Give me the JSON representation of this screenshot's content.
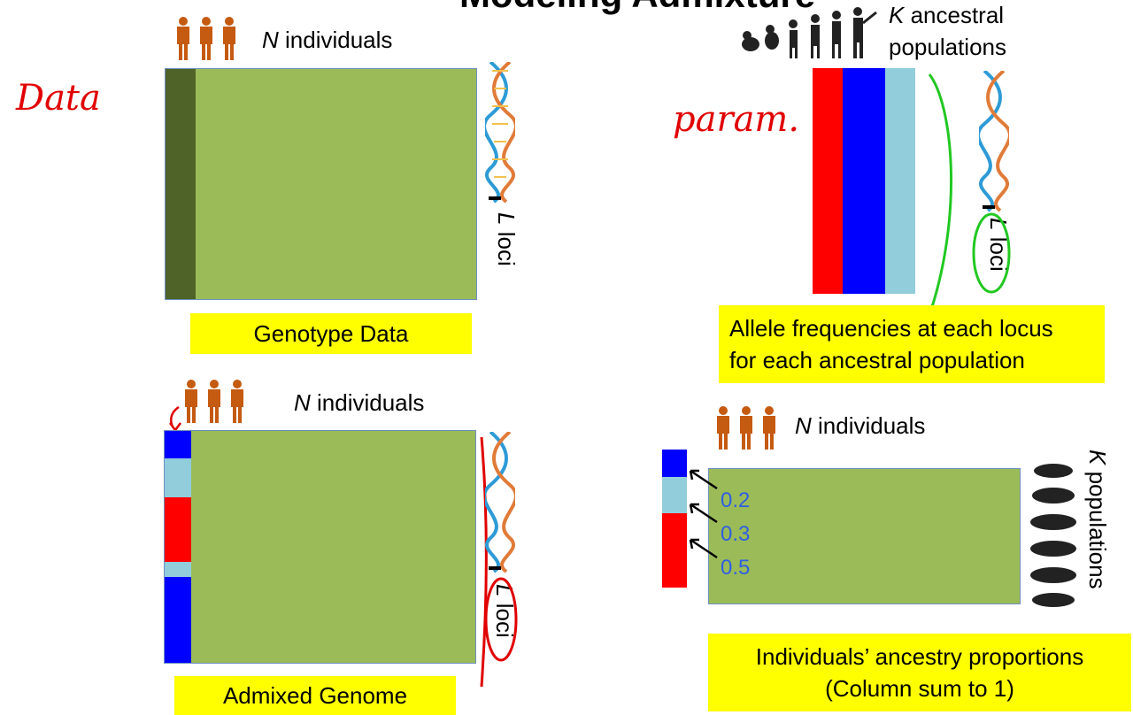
{
  "title": "Modeling Admixture",
  "annotations": {
    "data": "Data",
    "param": "param."
  },
  "genotype": {
    "individuals_var": "N",
    "individuals_text": "individuals",
    "loci_var": "L",
    "loci_text": "loci",
    "caption": "Genotype Data"
  },
  "allele": {
    "k_var": "K",
    "k_text": "ancestral",
    "k_text2": "populations",
    "loci_var": "L",
    "loci_text": "loci",
    "caption_line1": "Allele frequencies at each locus",
    "caption_line2": "for each ancestral population",
    "colors": [
      "#ff0000",
      "#0000ff",
      "#92cddc"
    ]
  },
  "admixed": {
    "individuals_var": "N",
    "individuals_text": "individuals",
    "loci_var": "L",
    "loci_text": "loci",
    "caption": "Admixed Genome",
    "segment_colors": [
      "#0000ff",
      "#92cddc",
      "#ff0000",
      "#92cddc",
      "#0000ff"
    ]
  },
  "ancestry": {
    "individuals_var": "N",
    "individuals_text": "individuals",
    "k_var": "K",
    "k_text": "populations",
    "proportions": [
      "0.2",
      "0.3",
      "0.5"
    ],
    "caption_line1": "Individuals’ ancestry proportions",
    "caption_line2": "(Column sum to 1)",
    "colors": [
      "#0000ff",
      "#92cddc",
      "#ff0000"
    ]
  }
}
